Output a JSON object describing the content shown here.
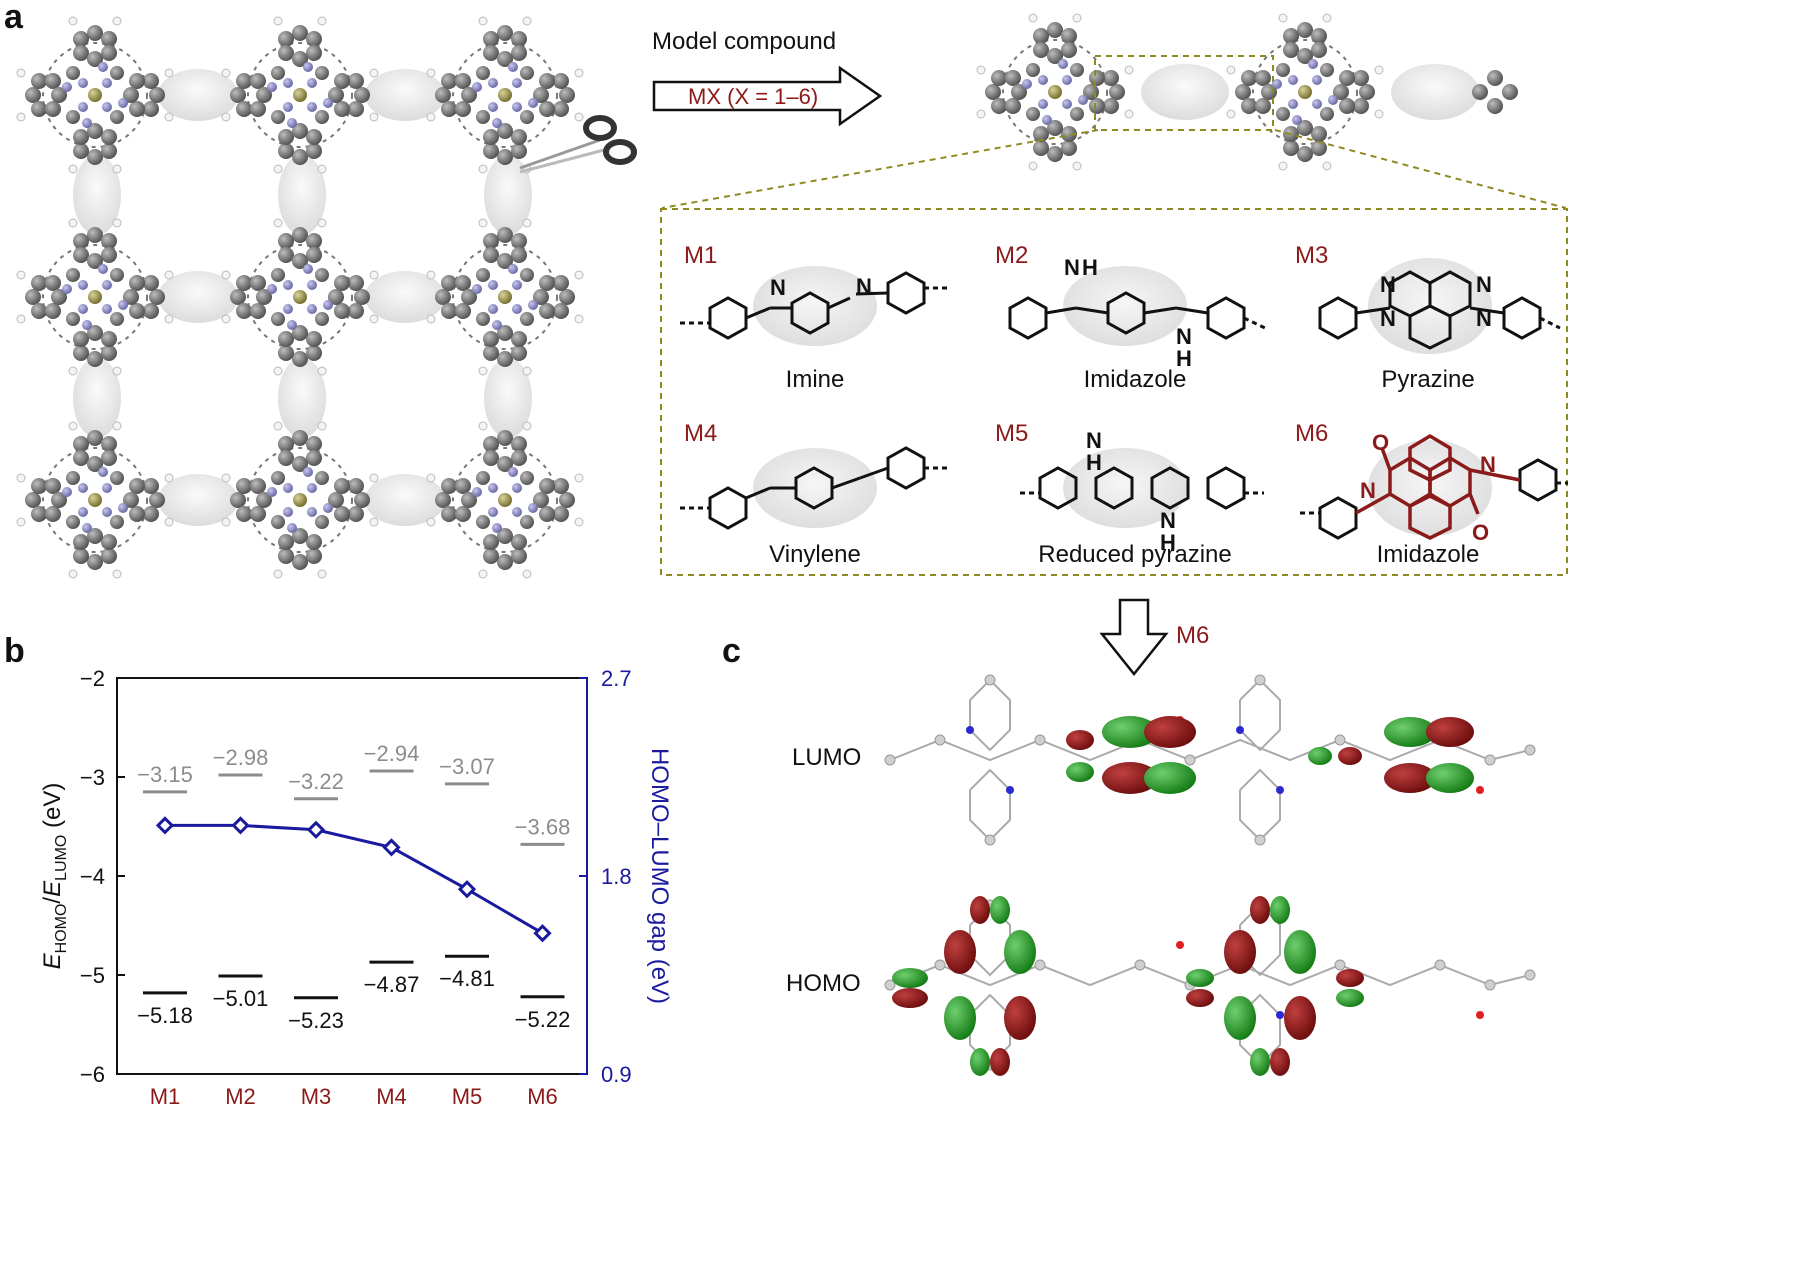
{
  "panels": {
    "a": "a",
    "b": "b",
    "c": "c"
  },
  "panel_a": {
    "arrow_title": "Model compound",
    "arrow_label": "MX (X = 1–6)",
    "molecules": [
      {
        "id": "M1",
        "name": "Imine"
      },
      {
        "id": "M2",
        "name": "Imidazole"
      },
      {
        "id": "M3",
        "name": "Pyrazine"
      },
      {
        "id": "M4",
        "name": "Vinylene"
      },
      {
        "id": "M5",
        "name": "Reduced pyrazine"
      },
      {
        "id": "M6",
        "name": "Imidazole"
      }
    ],
    "structure_atoms": {
      "nh": "N",
      "h": "H",
      "o": "O"
    }
  },
  "panel_c": {
    "arrow_label": "M6",
    "orbitals": {
      "lumo": "LUMO",
      "homo": "HOMO"
    }
  },
  "colors": {
    "accent_red": "#8b1a1a",
    "gap_blue": "#1a1a9e",
    "lumo_gray": "#8c8c8c",
    "homo_black": "#111111"
  },
  "chart_data": {
    "type": "line",
    "categories": [
      "M1",
      "M2",
      "M3",
      "M4",
      "M5",
      "M6"
    ],
    "lumo_levels": [
      -3.15,
      -2.98,
      -3.22,
      -2.94,
      -3.07,
      -3.68
    ],
    "homo_levels": [
      -5.18,
      -5.01,
      -5.23,
      -4.87,
      -4.81,
      -5.22
    ],
    "lumo_labels": [
      "−3.15",
      "−2.98",
      "−3.22",
      "−2.94",
      "−3.07",
      "−3.68"
    ],
    "homo_labels": [
      "−5.18",
      "−5.01",
      "−5.23",
      "−4.87",
      "−4.81",
      "−5.22"
    ],
    "gap_series": {
      "name": "HOMO–LUMO gap",
      "values": [
        2.03,
        2.03,
        2.01,
        1.93,
        1.74,
        1.54
      ]
    },
    "ylim_left": [
      -6,
      -2
    ],
    "ylim_right": [
      0.9,
      2.7
    ],
    "left_ticks": [
      "−2",
      "−3",
      "−4",
      "−5",
      "−6"
    ],
    "left_tick_values": [
      -2,
      -3,
      -4,
      -5,
      -6
    ],
    "right_ticks": [
      "2.7",
      "1.8",
      "0.9"
    ],
    "right_tick_values": [
      2.7,
      1.8,
      0.9
    ],
    "ylabel_left": {
      "e1": "E",
      "s1": "HOMO",
      "slash": "/",
      "e2": "E",
      "s2": "LUMO",
      "unit": " (eV)"
    },
    "ylabel_right": "HOMO–LUMO gap (eV)"
  }
}
